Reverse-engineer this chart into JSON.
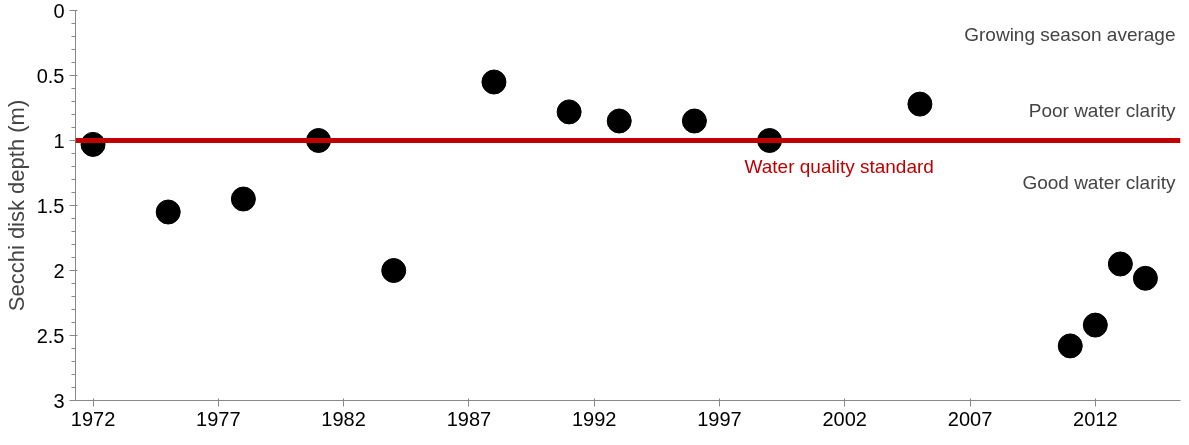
{
  "chart_data": {
    "type": "scatter",
    "ylabel": "Secchi disk depth (m)",
    "x": [
      1972,
      1975,
      1978,
      1981,
      1984,
      1988,
      1991,
      1993,
      1996,
      1999,
      2005,
      2011,
      2012,
      2013,
      2014
    ],
    "series": [
      {
        "color": "#000000",
        "values": [
          1.03,
          1.55,
          1.45,
          1.0,
          2.0,
          0.55,
          0.78,
          0.85,
          0.85,
          1.0,
          0.72,
          2.58,
          2.42,
          1.95,
          2.06
        ]
      }
    ],
    "marker": "circle",
    "grid": false,
    "xlim": [
      1971.3,
      2015.4
    ],
    "xticks": [
      1972,
      1977,
      1982,
      1987,
      1992,
      1997,
      2002,
      2007,
      2012
    ],
    "ylim": [
      3,
      0
    ],
    "yticks": [
      0,
      0.5,
      1,
      1.5,
      2,
      2.5,
      3
    ],
    "ref_lines": [
      {
        "axis": "y",
        "value": 1,
        "label": "Water quality standard",
        "color": "#c00000",
        "line_style": "solid"
      }
    ],
    "annotations": [
      "Growing season average",
      "Poor water clarity",
      "Good water clarity"
    ]
  }
}
